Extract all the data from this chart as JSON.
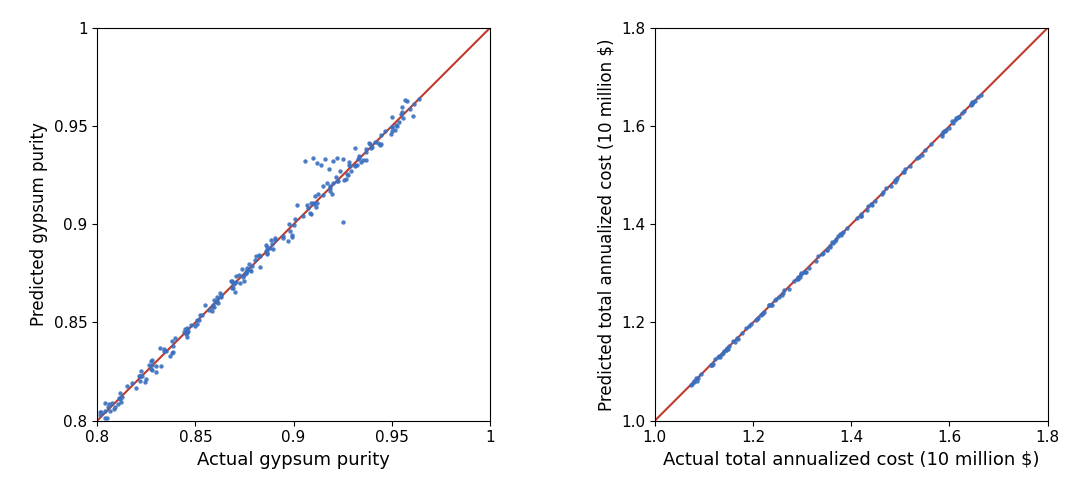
{
  "plot1": {
    "xlabel": "Actual gypsum purity",
    "ylabel": "Predicted gypsum purity",
    "xlim": [
      0.8,
      1.0
    ],
    "ylim": [
      0.8,
      1.0
    ],
    "xticks": [
      0.8,
      0.85,
      0.9,
      0.95,
      1.0
    ],
    "yticks": [
      0.8,
      0.85,
      0.9,
      0.95,
      1.0
    ],
    "line_color": "#c0392b",
    "dot_color": "#3a6fbf",
    "dot_size": 10
  },
  "plot2": {
    "xlabel": "Actual total annualized cost (10 million $)",
    "ylabel": "Predicted total annualized cost (10 million $)",
    "xlim": [
      1.0,
      1.8
    ],
    "ylim": [
      1.0,
      1.8
    ],
    "xticks": [
      1.0,
      1.2,
      1.4,
      1.6,
      1.8
    ],
    "yticks": [
      1.0,
      1.2,
      1.4,
      1.6,
      1.8
    ],
    "line_color": "#c0392b",
    "dot_color": "#3a6fbf",
    "dot_size": 10
  },
  "xlabel_fontsize": 13,
  "ylabel_fontsize": 12,
  "tick_fontsize": 11,
  "figwidth": 10.8,
  "figheight": 5.04,
  "dpi": 100
}
